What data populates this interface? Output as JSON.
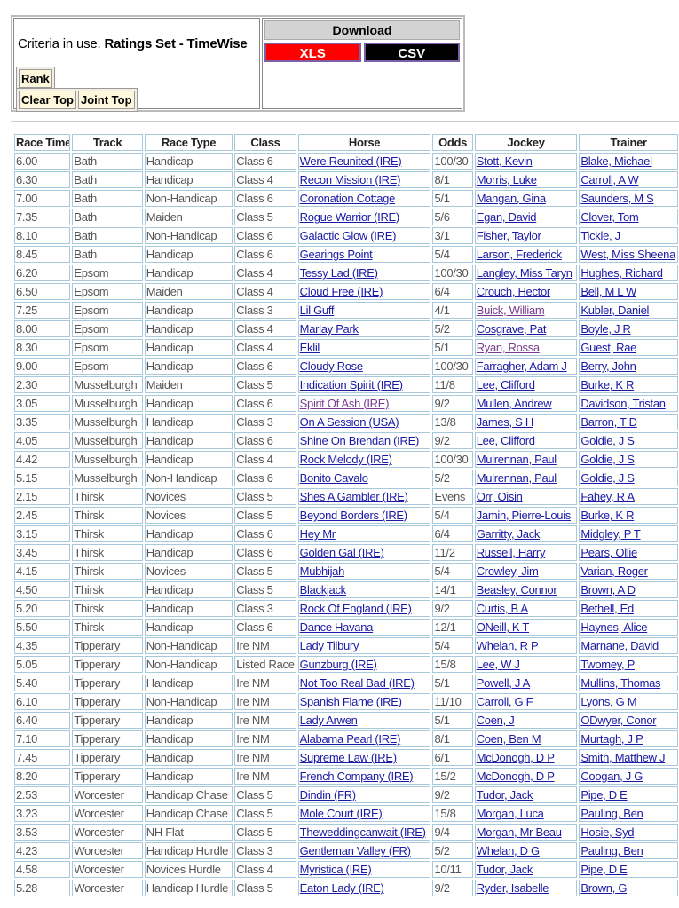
{
  "criteria": {
    "prefix": "Criteria in use.",
    "value": "Ratings Set - TimeWise"
  },
  "buttons": {
    "rank": "Rank",
    "clear_top": "Clear Top",
    "joint_top": "Joint Top"
  },
  "download": {
    "title": "Download",
    "xls": "XLS",
    "csv": "CSV",
    "xls_color": "#ff0000",
    "csv_color": "#000000"
  },
  "table": {
    "headers": [
      "Race Time",
      "Track",
      "Race Type",
      "Class",
      "Horse",
      "Odds",
      "Jockey",
      "Trainer"
    ],
    "rows": [
      [
        "6.00",
        "Bath",
        "Handicap",
        "Class 6",
        "Were Reunited (IRE)",
        "100/30",
        "Stott, Kevin",
        "Blake, Michael"
      ],
      [
        "6.30",
        "Bath",
        "Handicap",
        "Class 4",
        "Recon Mission (IRE)",
        "8/1",
        "Morris, Luke",
        "Carroll, A W"
      ],
      [
        "7.00",
        "Bath",
        "Non-Handicap",
        "Class 6",
        "Coronation Cottage",
        "5/1",
        "Mangan, Gina",
        "Saunders, M S"
      ],
      [
        "7.35",
        "Bath",
        "Maiden",
        "Class 5",
        "Rogue Warrior (IRE)",
        "5/6",
        "Egan, David",
        "Clover, Tom"
      ],
      [
        "8.10",
        "Bath",
        "Non-Handicap",
        "Class 6",
        "Galactic Glow (IRE)",
        "3/1",
        "Fisher, Taylor",
        "Tickle, J"
      ],
      [
        "8.45",
        "Bath",
        "Handicap",
        "Class 6",
        "Gearings Point",
        "5/4",
        "Larson, Frederick",
        "West, Miss Sheena"
      ],
      [
        "6.20",
        "Epsom",
        "Handicap",
        "Class 4",
        "Tessy Lad (IRE)",
        "100/30",
        "Langley, Miss Taryn",
        "Hughes, Richard"
      ],
      [
        "6.50",
        "Epsom",
        "Maiden",
        "Class 4",
        "Cloud Free (IRE)",
        "6/4",
        "Crouch, Hector",
        "Bell, M L W"
      ],
      [
        "7.25",
        "Epsom",
        "Handicap",
        "Class 3",
        "Lil Guff",
        "4/1",
        "Buick, William",
        "Kubler, Daniel"
      ],
      [
        "8.00",
        "Epsom",
        "Handicap",
        "Class 4",
        "Marlay Park",
        "5/2",
        "Cosgrave, Pat",
        "Boyle, J R"
      ],
      [
        "8.30",
        "Epsom",
        "Handicap",
        "Class 4",
        "Eklil",
        "5/1",
        "Ryan, Rossa",
        "Guest, Rae"
      ],
      [
        "9.00",
        "Epsom",
        "Handicap",
        "Class 6",
        "Cloudy Rose",
        "100/30",
        "Farragher, Adam J",
        "Berry, John"
      ],
      [
        "2.30",
        "Musselburgh",
        "Maiden",
        "Class 5",
        "Indication Spirit (IRE)",
        "11/8",
        "Lee, Clifford",
        "Burke, K R"
      ],
      [
        "3.05",
        "Musselburgh",
        "Handicap",
        "Class 6",
        "Spirit Of Ash (IRE)",
        "9/2",
        "Mullen, Andrew",
        "Davidson, Tristan"
      ],
      [
        "3.35",
        "Musselburgh",
        "Handicap",
        "Class 3",
        "On A Session (USA)",
        "13/8",
        "James, S H",
        "Barron, T D"
      ],
      [
        "4.05",
        "Musselburgh",
        "Handicap",
        "Class 6",
        "Shine On Brendan (IRE)",
        "9/2",
        "Lee, Clifford",
        "Goldie, J S"
      ],
      [
        "4.42",
        "Musselburgh",
        "Handicap",
        "Class 4",
        "Rock Melody (IRE)",
        "100/30",
        "Mulrennan, Paul",
        "Goldie, J S"
      ],
      [
        "5.15",
        "Musselburgh",
        "Non-Handicap",
        "Class 6",
        "Bonito Cavalo",
        "5/2",
        "Mulrennan, Paul",
        "Goldie, J S"
      ],
      [
        "2.15",
        "Thirsk",
        "Novices",
        "Class 5",
        "Shes A Gambler (IRE)",
        "Evens",
        "Orr, Oisin",
        "Fahey, R A"
      ],
      [
        "2.45",
        "Thirsk",
        "Novices",
        "Class 5",
        "Beyond Borders (IRE)",
        "5/4",
        "Jamin, Pierre-Louis",
        "Burke, K R"
      ],
      [
        "3.15",
        "Thirsk",
        "Handicap",
        "Class 6",
        "Hey Mr",
        "6/4",
        "Garritty, Jack",
        "Midgley, P T"
      ],
      [
        "3.45",
        "Thirsk",
        "Handicap",
        "Class 6",
        "Golden Gal (IRE)",
        "11/2",
        "Russell, Harry",
        "Pears, Ollie"
      ],
      [
        "4.15",
        "Thirsk",
        "Novices",
        "Class 5",
        "Mubhijah",
        "5/4",
        "Crowley, Jim",
        "Varian, Roger"
      ],
      [
        "4.50",
        "Thirsk",
        "Handicap",
        "Class 5",
        "Blackjack",
        "14/1",
        "Beasley, Connor",
        "Brown, A D"
      ],
      [
        "5.20",
        "Thirsk",
        "Handicap",
        "Class 3",
        "Rock Of England (IRE)",
        "9/2",
        "Curtis, B A",
        "Bethell, Ed"
      ],
      [
        "5.50",
        "Thirsk",
        "Handicap",
        "Class 6",
        "Dance Havana",
        "12/1",
        "ONeill, K T",
        "Haynes, Alice"
      ],
      [
        "4.35",
        "Tipperary",
        "Non-Handicap",
        "Ire NM",
        "Lady Tilbury",
        "5/4",
        "Whelan, R P",
        "Marnane, David"
      ],
      [
        "5.05",
        "Tipperary",
        "Non-Handicap",
        "Listed Race",
        "Gunzburg (IRE)",
        "15/8",
        "Lee, W J",
        "Twomey, P"
      ],
      [
        "5.40",
        "Tipperary",
        "Handicap",
        "Ire NM",
        "Not Too Real Bad (IRE)",
        "5/1",
        "Powell, J A",
        "Mullins, Thomas"
      ],
      [
        "6.10",
        "Tipperary",
        "Non-Handicap",
        "Ire NM",
        "Spanish Flame (IRE)",
        "11/10",
        "Carroll, G F",
        "Lyons, G M"
      ],
      [
        "6.40",
        "Tipperary",
        "Handicap",
        "Ire NM",
        "Lady Arwen",
        "5/1",
        "Coen, J",
        "ODwyer, Conor"
      ],
      [
        "7.10",
        "Tipperary",
        "Handicap",
        "Ire NM",
        "Alabama Pearl (IRE)",
        "8/1",
        "Coen, Ben M",
        "Murtagh, J P"
      ],
      [
        "7.45",
        "Tipperary",
        "Handicap",
        "Ire NM",
        "Supreme Law (IRE)",
        "6/1",
        "McDonogh, D P",
        "Smith, Matthew J"
      ],
      [
        "8.20",
        "Tipperary",
        "Handicap",
        "Ire NM",
        "French Company (IRE)",
        "15/2",
        "McDonogh, D P",
        "Coogan, J G"
      ],
      [
        "2.53",
        "Worcester",
        "Handicap Chase",
        "Class 5",
        "Dindin (FR)",
        "9/2",
        "Tudor, Jack",
        "Pipe, D E"
      ],
      [
        "3.23",
        "Worcester",
        "Handicap Chase",
        "Class 5",
        "Mole Court (IRE)",
        "15/8",
        "Morgan, Luca",
        "Pauling, Ben"
      ],
      [
        "3.53",
        "Worcester",
        "NH Flat",
        "Class 5",
        "Theweddingcanwait (IRE)",
        "9/4",
        "Morgan, Mr Beau",
        "Hosie, Syd"
      ],
      [
        "4.23",
        "Worcester",
        "Handicap Hurdle",
        "Class 3",
        "Gentleman Valley (FR)",
        "5/2",
        "Whelan, D G",
        "Pauling, Ben"
      ],
      [
        "4.58",
        "Worcester",
        "Novices Hurdle",
        "Class 4",
        "Myristica (IRE)",
        "10/11",
        "Tudor, Jack",
        "Pipe, D E"
      ],
      [
        "5.28",
        "Worcester",
        "Handicap Hurdle",
        "Class 5",
        "Eaton Lady (IRE)",
        "9/2",
        "Ryder, Isabelle",
        "Brown, G"
      ]
    ],
    "visited_links": [
      {
        "row": 8,
        "col": 6
      },
      {
        "row": 10,
        "col": 6
      },
      {
        "row": 13,
        "col": 4
      }
    ],
    "link_color": "#1a1aa6",
    "visited_color": "#7a3a90"
  }
}
